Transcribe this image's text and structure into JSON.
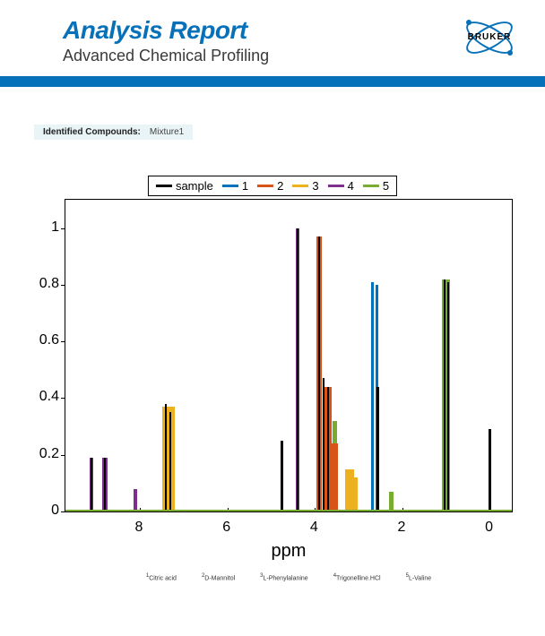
{
  "header": {
    "title": "Analysis Report",
    "subtitle": "Advanced Chemical Profiling",
    "brand": "BRUKER",
    "brand_color": "#0670b8",
    "divider_color": "#0670b8"
  },
  "identified": {
    "label": "Identified Compounds:",
    "value": "Mixture1"
  },
  "chart": {
    "type": "line",
    "x_label": "ppm",
    "x_reversed": true,
    "xlim": [
      -0.5,
      9.7
    ],
    "xticks": [
      0,
      2,
      4,
      6,
      8
    ],
    "ylim": [
      0,
      1.1
    ],
    "yticks": [
      0,
      0.2,
      0.4,
      0.6,
      0.8,
      1
    ],
    "background_color": "#ffffff",
    "axis_color": "#000000",
    "axis_fontsize": 16,
    "label_fontsize": 20,
    "legend_position": "top",
    "legend_border": "#000000",
    "legend_fontsize": 13,
    "line_width": 3,
    "series": [
      {
        "name": "sample",
        "color": "#000000"
      },
      {
        "name": "1",
        "color": "#0071bd"
      },
      {
        "name": "2",
        "color": "#d95319"
      },
      {
        "name": "3",
        "color": "#edb120"
      },
      {
        "name": "4",
        "color": "#7e2f8e"
      },
      {
        "name": "5",
        "color": "#77ac30"
      }
    ],
    "peaks": [
      {
        "series": 4,
        "ppm": 9.1,
        "height": 0.19,
        "width": 0.08
      },
      {
        "series": 0,
        "ppm": 9.1,
        "height": 0.19,
        "width": 0.02
      },
      {
        "series": 4,
        "ppm": 8.8,
        "height": 0.19,
        "width": 0.12
      },
      {
        "series": 0,
        "ppm": 8.8,
        "height": 0.19,
        "width": 0.03
      },
      {
        "series": 4,
        "ppm": 8.1,
        "height": 0.08,
        "width": 0.08
      },
      {
        "series": 3,
        "ppm": 7.35,
        "height": 0.37,
        "width": 0.28
      },
      {
        "series": 0,
        "ppm": 7.4,
        "height": 0.38,
        "width": 0.04
      },
      {
        "series": 0,
        "ppm": 7.3,
        "height": 0.35,
        "width": 0.04
      },
      {
        "series": 0,
        "ppm": 4.75,
        "height": 0.25,
        "width": 0.06
      },
      {
        "series": 4,
        "ppm": 4.4,
        "height": 1.0,
        "width": 0.09
      },
      {
        "series": 0,
        "ppm": 4.4,
        "height": 1.0,
        "width": 0.03
      },
      {
        "series": 2,
        "ppm": 3.9,
        "height": 0.97,
        "width": 0.11
      },
      {
        "series": 0,
        "ppm": 3.9,
        "height": 0.97,
        "width": 0.04
      },
      {
        "series": 0,
        "ppm": 3.8,
        "height": 0.47,
        "width": 0.05
      },
      {
        "series": 2,
        "ppm": 3.7,
        "height": 0.44,
        "width": 0.18
      },
      {
        "series": 0,
        "ppm": 3.7,
        "height": 0.44,
        "width": 0.03
      },
      {
        "series": 5,
        "ppm": 3.55,
        "height": 0.32,
        "width": 0.1
      },
      {
        "series": 2,
        "ppm": 3.55,
        "height": 0.24,
        "width": 0.14
      },
      {
        "series": 3,
        "ppm": 3.2,
        "height": 0.15,
        "width": 0.2
      },
      {
        "series": 3,
        "ppm": 3.08,
        "height": 0.12,
        "width": 0.1
      },
      {
        "series": 0,
        "ppm": 2.7,
        "height": 0.81,
        "width": 0.04
      },
      {
        "series": 1,
        "ppm": 2.68,
        "height": 0.81,
        "width": 0.06
      },
      {
        "series": 1,
        "ppm": 2.58,
        "height": 0.8,
        "width": 0.06
      },
      {
        "series": 0,
        "ppm": 2.56,
        "height": 0.44,
        "width": 0.05
      },
      {
        "series": 5,
        "ppm": 2.25,
        "height": 0.07,
        "width": 0.1
      },
      {
        "series": 5,
        "ppm": 1.0,
        "height": 0.82,
        "width": 0.18
      },
      {
        "series": 0,
        "ppm": 1.03,
        "height": 0.82,
        "width": 0.04
      },
      {
        "series": 0,
        "ppm": 0.95,
        "height": 0.81,
        "width": 0.04
      },
      {
        "series": 0,
        "ppm": 0.0,
        "height": 0.29,
        "width": 0.06
      }
    ],
    "footnotes": [
      {
        "n": "1",
        "text": "Citric acid"
      },
      {
        "n": "2",
        "text": "D-Mannitol"
      },
      {
        "n": "3",
        "text": "L-Phenylalanine"
      },
      {
        "n": "4",
        "text": "Trigonelline.HCl"
      },
      {
        "n": "5",
        "text": "L-Valine"
      }
    ]
  }
}
